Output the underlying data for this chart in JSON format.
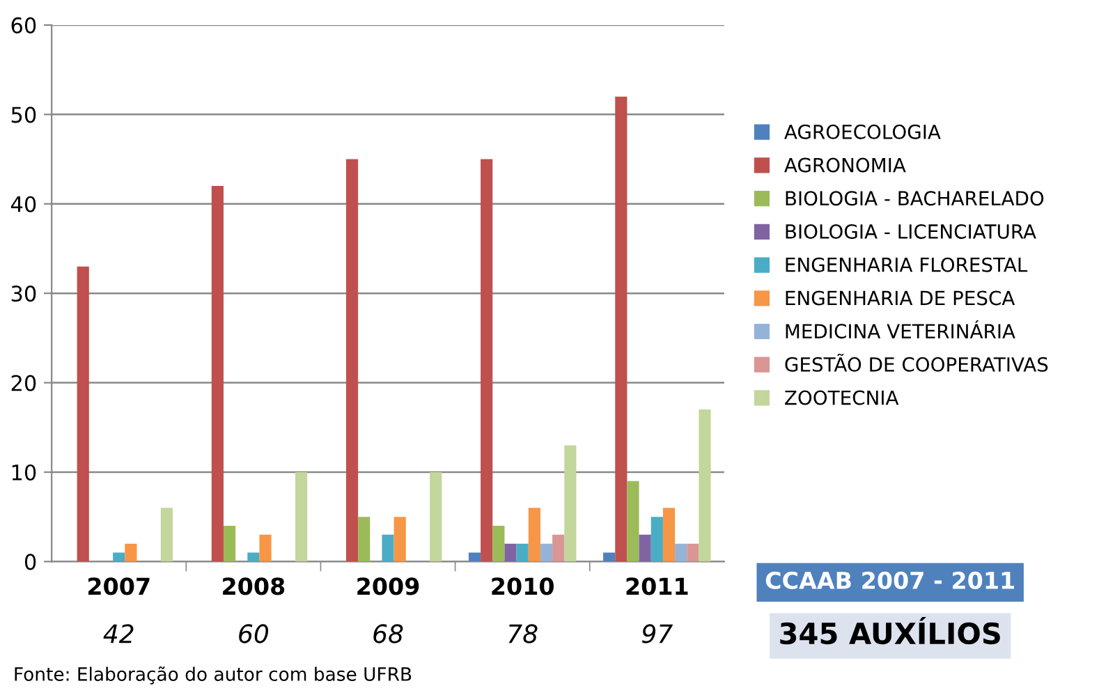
{
  "chart_data": {
    "type": "bar",
    "categories": [
      "2007",
      "2008",
      "2009",
      "2010",
      "2011"
    ],
    "series": [
      {
        "name": "AGROECOLOGIA",
        "color": "#4f81bd",
        "values": [
          0,
          0,
          0,
          1,
          1
        ]
      },
      {
        "name": "AGRONOMIA",
        "color": "#c0504d",
        "values": [
          33,
          42,
          45,
          45,
          52
        ]
      },
      {
        "name": "BIOLOGIA - BACHARELADO",
        "color": "#9bbb59",
        "values": [
          0,
          4,
          5,
          4,
          9
        ]
      },
      {
        "name": "BIOLOGIA - LICENCIATURA",
        "color": "#8064a2",
        "values": [
          0,
          0,
          0,
          2,
          3
        ]
      },
      {
        "name": "ENGENHARIA FLORESTAL",
        "color": "#4bacc6",
        "values": [
          1,
          1,
          3,
          2,
          5
        ]
      },
      {
        "name": "ENGENHARIA DE PESCA",
        "color": "#f79646",
        "values": [
          2,
          3,
          5,
          6,
          6
        ]
      },
      {
        "name": "MEDICINA VETERINÁRIA",
        "color": "#95b3d7",
        "values": [
          0,
          0,
          0,
          2,
          2
        ]
      },
      {
        "name": "GESTÃO DE COOPERATIVAS",
        "color": "#d99694",
        "values": [
          0,
          0,
          0,
          3,
          2
        ]
      },
      {
        "name": "ZOOTECNIA",
        "color": "#c3d69b",
        "values": [
          6,
          10,
          10,
          13,
          17
        ]
      }
    ],
    "ylim": [
      0,
      60
    ],
    "yticks": [
      0,
      10,
      20,
      30,
      40,
      50,
      60
    ],
    "grid": "y",
    "legend": "right",
    "annotations": [
      "42",
      "60",
      "68",
      "78",
      "97",
      "CCAAB 2007 - 2011",
      "345 AUXÍLIOS",
      "Fonte: Elaboração do autor com base UFRB"
    ]
  }
}
